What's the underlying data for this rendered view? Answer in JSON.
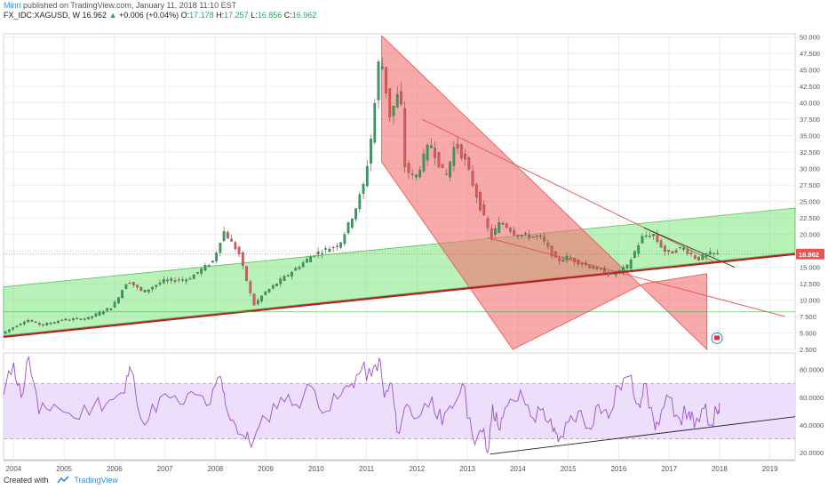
{
  "header": {
    "author": "Minri",
    "published": "published on TradingView.com, January 11, 2018 11:10 EST",
    "symbol": "FX_IDC:XAGUSD, W",
    "last": "16.962",
    "change_arrow": "▲",
    "change": "+0.006 (+0.04%)",
    "o_label": "O:",
    "o": "17.178",
    "h_label": "H:",
    "h": "17.257",
    "l_label": "L:",
    "l": "16.856",
    "c_label": "C:",
    "c": "16.962"
  },
  "footer": {
    "created_with": "Created with",
    "brand": "TradingView"
  },
  "colors": {
    "up": "#26a65b",
    "down": "#ef5350",
    "green_channel": "#7ee87e",
    "red_channel": "#f47070",
    "rsi_line": "#9c4dcc",
    "rsi_band": "#e9d7fb",
    "trendline": "#b22222",
    "price_tag": "#ef5350"
  },
  "chart_data": [
    {
      "type": "line",
      "title": "",
      "instrument": "FX_IDC:XAGUSD",
      "timeframe": "W",
      "x_ticks": [
        "2004",
        "2005",
        "2006",
        "2007",
        "2008",
        "2009",
        "2010",
        "2011",
        "2012",
        "2013",
        "2014",
        "2015",
        "2016",
        "2017",
        "2018",
        "2019"
      ],
      "y_ticks": [
        "2.500",
        "5.000",
        "7.500",
        "10.000",
        "12.500",
        "15.000",
        "17.500",
        "20.000",
        "22.500",
        "25.000",
        "27.500",
        "30.000",
        "32.500",
        "35.000",
        "37.500",
        "40.000",
        "42.500",
        "45.000",
        "47.500",
        "50.000"
      ],
      "ylim": [
        2.5,
        50.5
      ],
      "current_price_label": "16.962",
      "series": [
        {
          "x": [
            2003.8,
            2004.3,
            2004.6,
            2005.0,
            2005.5,
            2006.0,
            2006.3,
            2006.6,
            2007.0,
            2007.5,
            2008.0,
            2008.2,
            2008.5,
            2008.8,
            2009.0,
            2009.5,
            2010.0,
            2010.5,
            2010.8,
            2011.0,
            2011.15,
            2011.3,
            2011.5,
            2011.7,
            2011.8,
            2012.0,
            2012.3,
            2012.6,
            2012.8,
            2013.0,
            2013.3,
            2013.5,
            2013.7,
            2014.0,
            2014.5,
            2014.8,
            2015.0,
            2015.5,
            2015.9,
            2016.2,
            2016.5,
            2016.7,
            2017.0,
            2017.3,
            2017.6,
            2017.8,
            2018.0
          ],
          "values": [
            4.9,
            7.0,
            6.2,
            7.0,
            7.2,
            9.0,
            13.0,
            11.2,
            12.9,
            13.2,
            16.0,
            20.5,
            17.2,
            9.2,
            11.0,
            14.0,
            17.0,
            18.5,
            23.5,
            28.0,
            36.0,
            48.0,
            38.0,
            42.0,
            30.0,
            28.5,
            34.0,
            28.5,
            34.0,
            31.0,
            24.0,
            19.5,
            22.0,
            20.0,
            19.5,
            16.0,
            16.5,
            15.0,
            13.8,
            15.0,
            19.5,
            20.0,
            17.0,
            18.0,
            16.2,
            17.0,
            16.96
          ]
        }
      ]
    },
    {
      "type": "line",
      "title": "",
      "y_ticks": [
        "20.0000",
        "40.0000",
        "60.0000",
        "80.0000"
      ],
      "ylim": [
        15,
        92
      ],
      "band": [
        30,
        70
      ],
      "series": [
        {
          "x": [
            2003.8,
            2004.0,
            2004.15,
            2004.3,
            2004.5,
            2004.8,
            2005.2,
            2005.6,
            2005.9,
            2006.2,
            2006.3,
            2006.6,
            2006.9,
            2007.3,
            2007.6,
            2007.9,
            2008.1,
            2008.2,
            2008.4,
            2008.6,
            2008.75,
            2009.0,
            2009.3,
            2009.6,
            2009.9,
            2010.2,
            2010.5,
            2010.7,
            2010.9,
            2011.1,
            2011.25,
            2011.35,
            2011.5,
            2011.6,
            2011.8,
            2012.0,
            2012.3,
            2012.5,
            2012.7,
            2012.9,
            2013.1,
            2013.3,
            2013.4,
            2013.5,
            2013.6,
            2013.7,
            2013.9,
            2014.1,
            2014.3,
            2014.5,
            2014.7,
            2014.8,
            2015.0,
            2015.2,
            2015.4,
            2015.6,
            2015.8,
            2016.0,
            2016.2,
            2016.4,
            2016.5,
            2016.7,
            2016.8,
            2017.0,
            2017.2,
            2017.4,
            2017.5,
            2017.7,
            2017.8,
            2017.95,
            2018.0
          ],
          "values": [
            62,
            85,
            60,
            89,
            48,
            55,
            45,
            55,
            58,
            63,
            82,
            40,
            60,
            55,
            62,
            55,
            75,
            55,
            40,
            30,
            28,
            45,
            60,
            55,
            68,
            50,
            62,
            70,
            80,
            75,
            88,
            60,
            70,
            35,
            55,
            45,
            60,
            40,
            52,
            70,
            32,
            35,
            20,
            55,
            40,
            45,
            58,
            60,
            45,
            52,
            35,
            28,
            42,
            50,
            38,
            55,
            45,
            68,
            75,
            55,
            70,
            42,
            40,
            60,
            45,
            50,
            38,
            52,
            40,
            50,
            56
          ]
        }
      ]
    }
  ]
}
